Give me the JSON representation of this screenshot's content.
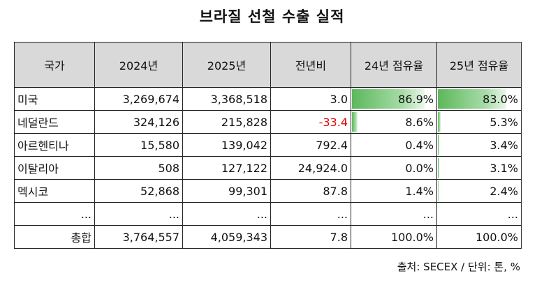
{
  "title": "브라질 선철 수출 실적",
  "headers": [
    "국가",
    "2024년",
    "2025년",
    "전년비",
    "24년 점유율",
    "25년 점유율"
  ],
  "rows": [
    {
      "country": "미국",
      "y2024": "3,269,674",
      "y2025": "3,368,518",
      "yoy": "3.0",
      "share24": "86.9%",
      "share25": "83.0%",
      "share24_value": 86.9,
      "share25_value": 83.0
    },
    {
      "country": "네덜란드",
      "y2024": "324,126",
      "y2025": "215,828",
      "yoy": "-33.4",
      "share24": "8.6%",
      "share25": "5.3%",
      "share24_value": 8.6,
      "share25_value": 5.3
    },
    {
      "country": "아르헨티나",
      "y2024": "15,580",
      "y2025": "139,042",
      "yoy": "792.4",
      "share24": "0.4%",
      "share25": "3.4%",
      "share24_value": 0.4,
      "share25_value": 3.4
    },
    {
      "country": "이탈리아",
      "y2024": "508",
      "y2025": "127,122",
      "yoy": "24,924.0",
      "share24": "0.0%",
      "share25": "3.1%",
      "share24_value": 0.0,
      "share25_value": 3.1
    },
    {
      "country": "멕시코",
      "y2024": "52,868",
      "y2025": "99,301",
      "yoy": "87.8",
      "share24": "1.4%",
      "share25": "2.4%",
      "share24_value": 1.4,
      "share25_value": 2.4
    },
    {
      "country": "...",
      "y2024": "...",
      "y2025": "...",
      "yoy": "...",
      "share24": "...",
      "share25": "..."
    }
  ],
  "total": {
    "label": "총합",
    "y2024": "3,764,557",
    "y2025": "4,059,343",
    "yoy": "7.8",
    "share24": "100.0%",
    "share25": "100.0%"
  },
  "source": "출처: SECEX / 단위: 톤, %",
  "colors": {
    "bar": "#5cb85c",
    "negative": "#e00000",
    "header_bg": "#d9d9d9"
  }
}
